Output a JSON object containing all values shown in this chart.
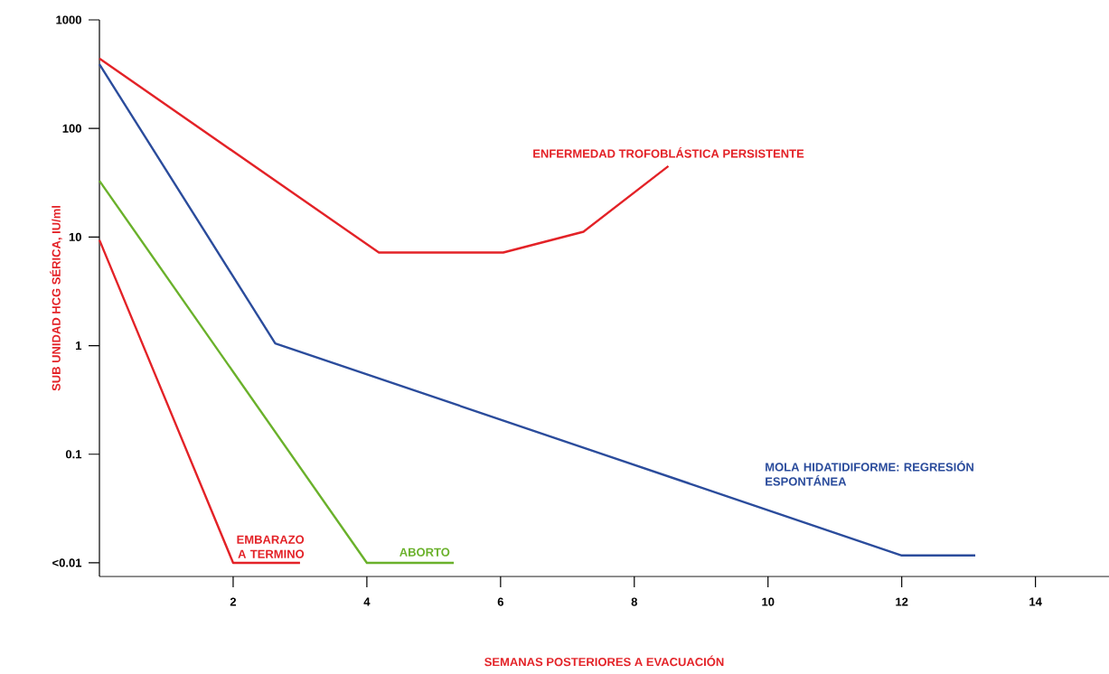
{
  "chart_data": {
    "type": "line",
    "xlabel": "SEMANAS POSTERIORES A EVACUACIÓN",
    "ylabel": "SUB UNIDAD HCG SÉRICA, IU/ml",
    "log": "y",
    "xlim": [
      0,
      15.1
    ],
    "xticks": [
      2,
      4,
      6,
      8,
      10,
      12,
      14
    ],
    "ylim": [
      0.0075,
      1000
    ],
    "yticks": [
      1000,
      100,
      10,
      1,
      0.1,
      {
        "value": 0.01,
        "label": "<0.01"
      }
    ],
    "series": [
      {
        "name": "ENFERMEDAD TROFOBLÁSTICA PERSISTENTE",
        "color": "#e32227",
        "x": [
          0,
          4.18,
          6.04,
          7.24,
          8.51
        ],
        "values": [
          440,
          7.2,
          7.2,
          11.2,
          45
        ]
      },
      {
        "name": "MOLA HIDATIDIFORME: REGRESIÓN ESPONTÁNEA",
        "color": "#2b4c9c",
        "x": [
          0,
          2.63,
          12,
          13.1
        ],
        "values": [
          390,
          1.05,
          0.0117,
          0.0117
        ]
      },
      {
        "name": "ABORTO",
        "color": "#6ab12b",
        "x": [
          0,
          4,
          5.3
        ],
        "values": [
          33,
          0.01,
          0.01
        ]
      },
      {
        "name": "EMBARAZO A TERMINO",
        "color": "#e32227",
        "x": [
          0,
          2,
          3.0
        ],
        "values": [
          9.4,
          0.01,
          0.01
        ]
      }
    ]
  }
}
